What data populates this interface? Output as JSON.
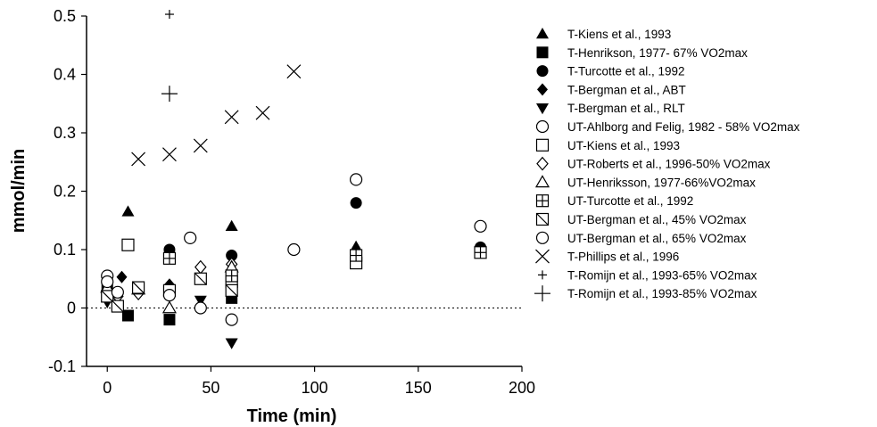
{
  "chart_data": {
    "type": "scatter",
    "xlabel": "Time  (min)",
    "ylabel": "mmol/min",
    "xlim": [
      -10,
      200
    ],
    "ylim": [
      -0.1,
      0.5
    ],
    "x_ticks": [
      0,
      50,
      100,
      150,
      200
    ],
    "y_ticks": [
      -0.1,
      0,
      0.1,
      0.2,
      0.3,
      0.4,
      0.5
    ],
    "y_tick_labels": [
      "-0.1",
      "0",
      "0.1",
      "0.2",
      "0.3",
      "0.4",
      "0.5"
    ],
    "reference_line": {
      "y": 0,
      "style": "dotted"
    },
    "legend_position": "right",
    "series": [
      {
        "name": "T-Kiens et al., 1993",
        "marker": "triangle-up-filled",
        "points": [
          [
            10,
            0.165
          ],
          [
            60,
            0.14
          ],
          [
            120,
            0.105
          ],
          [
            180,
            0.103
          ]
        ]
      },
      {
        "name": "T-Henrikson, 1977- 67% VO2max",
        "marker": "square-filled",
        "points": [
          [
            0,
            0.038
          ],
          [
            10,
            -0.013
          ],
          [
            30,
            -0.02
          ],
          [
            60,
            0.017
          ]
        ]
      },
      {
        "name": "T-Turcotte et al., 1992",
        "marker": "circle-filled",
        "points": [
          [
            30,
            0.1
          ],
          [
            60,
            0.09
          ],
          [
            120,
            0.18
          ],
          [
            180,
            0.104
          ]
        ]
      },
      {
        "name": "T-Bergman et al., ABT",
        "marker": "diamond-filled",
        "points": [
          [
            7,
            0.053
          ],
          [
            30,
            0.04
          ],
          [
            60,
            0.037
          ]
        ]
      },
      {
        "name": "T-Bergman et al., RLT",
        "marker": "triangle-down-filled",
        "points": [
          [
            0,
            0.01
          ],
          [
            45,
            0.013
          ],
          [
            60,
            -0.06
          ]
        ]
      },
      {
        "name": "UT-Ahlborg and Felig, 1982 - 58% VO2max",
        "marker": "circle-open",
        "points": [
          [
            0,
            0.055
          ],
          [
            40,
            0.12
          ],
          [
            45,
            0.0
          ],
          [
            60,
            -0.02
          ],
          [
            90,
            0.1
          ],
          [
            120,
            0.22
          ],
          [
            180,
            0.14
          ]
        ]
      },
      {
        "name": "UT-Kiens et al., 1993",
        "marker": "square-open",
        "points": [
          [
            10,
            0.108
          ],
          [
            30,
            0.03
          ],
          [
            60,
            0.045
          ],
          [
            120,
            0.077
          ]
        ]
      },
      {
        "name": "UT-Roberts et al., 1996-50% VO2max",
        "marker": "diamond-open",
        "points": [
          [
            5,
            0.02
          ],
          [
            15,
            0.025
          ],
          [
            45,
            0.07
          ],
          [
            60,
            0.075
          ]
        ]
      },
      {
        "name": "UT-Henriksson, 1977-66%VO2max",
        "marker": "triangle-up-open",
        "points": [
          [
            0,
            0.035
          ],
          [
            15,
            0.032
          ],
          [
            30,
            0.0
          ],
          [
            60,
            0.07
          ]
        ]
      },
      {
        "name": "UT-Turcotte et al., 1992",
        "marker": "square-cross",
        "points": [
          [
            30,
            0.085
          ],
          [
            60,
            0.055
          ],
          [
            120,
            0.09
          ],
          [
            180,
            0.095
          ]
        ]
      },
      {
        "name": "UT-Bergman et al., 45% VO2max",
        "marker": "square-slash",
        "points": [
          [
            0,
            0.02
          ],
          [
            5,
            0.003
          ],
          [
            15,
            0.035
          ],
          [
            45,
            0.05
          ],
          [
            60,
            0.03
          ]
        ]
      },
      {
        "name": "UT-Bergman et al., 65% VO2max",
        "marker": "circle-open",
        "points": [
          [
            0,
            0.045
          ],
          [
            5,
            0.027
          ],
          [
            30,
            0.022
          ]
        ]
      },
      {
        "name": "T-Phillips et al., 1996",
        "marker": "x-cross",
        "points": [
          [
            15,
            0.255
          ],
          [
            30,
            0.263
          ],
          [
            45,
            0.278
          ],
          [
            60,
            0.327
          ],
          [
            75,
            0.334
          ],
          [
            90,
            0.405
          ]
        ]
      },
      {
        "name": "T-Romijn et al., 1993-65% VO2max",
        "marker": "plus-small",
        "points": [
          [
            30,
            0.503
          ]
        ]
      },
      {
        "name": "T-Romijn et al., 1993-85% VO2max",
        "marker": "plus-large",
        "points": [
          [
            30,
            0.367
          ]
        ]
      }
    ]
  }
}
